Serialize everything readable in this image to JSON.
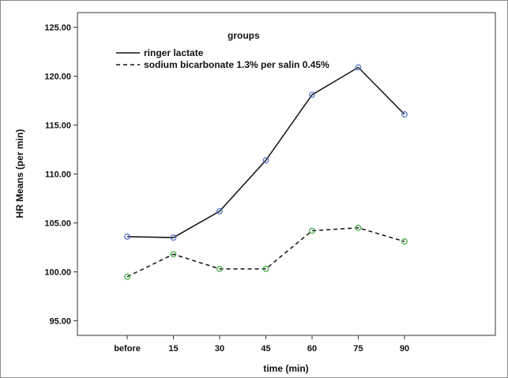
{
  "chart_data": {
    "type": "line",
    "xlabel": "time (min)",
    "ylabel": "HR Means (per min)",
    "categories": [
      "before",
      "15",
      "30",
      "45",
      "60",
      "75",
      "90"
    ],
    "ylim": [
      93.5,
      126.5
    ],
    "yticks": [
      "95.00",
      "100.00",
      "105.00",
      "110.00",
      "115.00",
      "120.00",
      "125.00"
    ],
    "ytick_values": [
      95,
      100,
      105,
      110,
      115,
      120,
      125
    ],
    "grid": false,
    "legend": {
      "title": "groups",
      "position": "top-left"
    },
    "series": [
      {
        "name": "ringer lactate",
        "style": "solid",
        "line_color": "#111111",
        "marker_color": "#4a6fc2",
        "values": [
          103.6,
          103.5,
          106.2,
          111.4,
          118.1,
          120.9,
          116.1
        ]
      },
      {
        "name": "sodium bicarbonate 1.3% per salin 0.45%",
        "style": "dashed",
        "line_color": "#111111",
        "marker_color": "#3aa83a",
        "values": [
          99.5,
          101.8,
          100.3,
          100.3,
          104.2,
          104.5,
          103.1
        ]
      }
    ]
  }
}
